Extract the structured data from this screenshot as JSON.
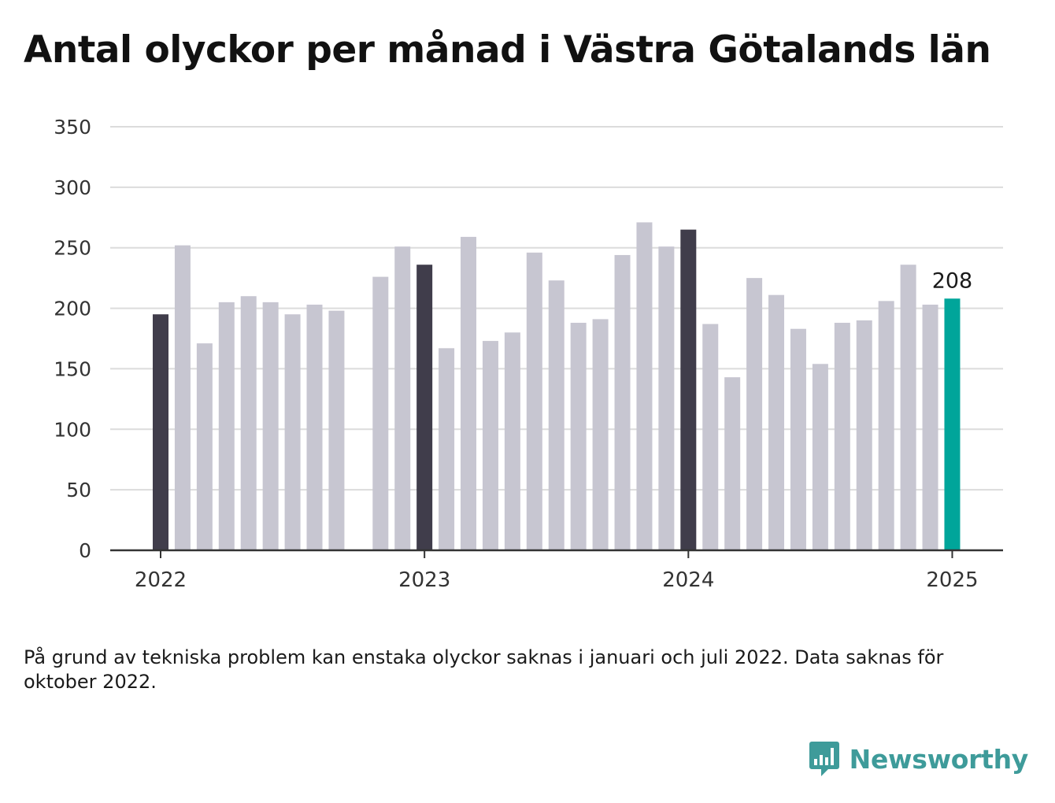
{
  "chart_data": {
    "type": "bar",
    "title": "Antal olyckor per månad i Västra Götalands län",
    "xlabel": "",
    "ylabel": "",
    "ylim": [
      0,
      350
    ],
    "yticks": [
      0,
      50,
      100,
      150,
      200,
      250,
      300,
      350
    ],
    "x_tick_labels": [
      "2022",
      "2023",
      "2024",
      "2025"
    ],
    "grid": true,
    "series": [
      {
        "values": [
          {
            "month": "2022-01",
            "value": 195
          },
          {
            "month": "2022-02",
            "value": 252
          },
          {
            "month": "2022-03",
            "value": 171
          },
          {
            "month": "2022-04",
            "value": 205
          },
          {
            "month": "2022-05",
            "value": 210
          },
          {
            "month": "2022-06",
            "value": 205
          },
          {
            "month": "2022-07",
            "value": 195
          },
          {
            "month": "2022-08",
            "value": 203
          },
          {
            "month": "2022-09",
            "value": 198
          },
          {
            "month": "2022-10",
            "value": null
          },
          {
            "month": "2022-11",
            "value": 226
          },
          {
            "month": "2022-12",
            "value": 251
          },
          {
            "month": "2023-01",
            "value": 236
          },
          {
            "month": "2023-02",
            "value": 167
          },
          {
            "month": "2023-03",
            "value": 259
          },
          {
            "month": "2023-04",
            "value": 173
          },
          {
            "month": "2023-05",
            "value": 180
          },
          {
            "month": "2023-06",
            "value": 246
          },
          {
            "month": "2023-07",
            "value": 223
          },
          {
            "month": "2023-08",
            "value": 188
          },
          {
            "month": "2023-09",
            "value": 191
          },
          {
            "month": "2023-10",
            "value": 244
          },
          {
            "month": "2023-11",
            "value": 271
          },
          {
            "month": "2023-12",
            "value": 251
          },
          {
            "month": "2024-01",
            "value": 265
          },
          {
            "month": "2024-02",
            "value": 187
          },
          {
            "month": "2024-03",
            "value": 143
          },
          {
            "month": "2024-04",
            "value": 225
          },
          {
            "month": "2024-05",
            "value": 211
          },
          {
            "month": "2024-06",
            "value": 183
          },
          {
            "month": "2024-07",
            "value": 154
          },
          {
            "month": "2024-08",
            "value": 188
          },
          {
            "month": "2024-09",
            "value": 190
          },
          {
            "month": "2024-10",
            "value": 206
          },
          {
            "month": "2024-11",
            "value": 236
          },
          {
            "month": "2024-12",
            "value": 203
          },
          {
            "month": "2025-01",
            "value": 208
          }
        ]
      }
    ],
    "highlighted_label": "208",
    "colors": {
      "january": "#403d4b",
      "other_month": "#c7c6d1",
      "latest": "#00a59a",
      "grid": "#dcdcdc",
      "axis": "#333333"
    }
  },
  "footnote": "På grund av tekniska problem kan enstaka olyckor saknas i januari och juli 2022. Data saknas för oktober 2022.",
  "brand": {
    "name": "Newsworthy",
    "icon": "bar-chart-speech-bubble-icon",
    "color": "#3e9b9a"
  }
}
